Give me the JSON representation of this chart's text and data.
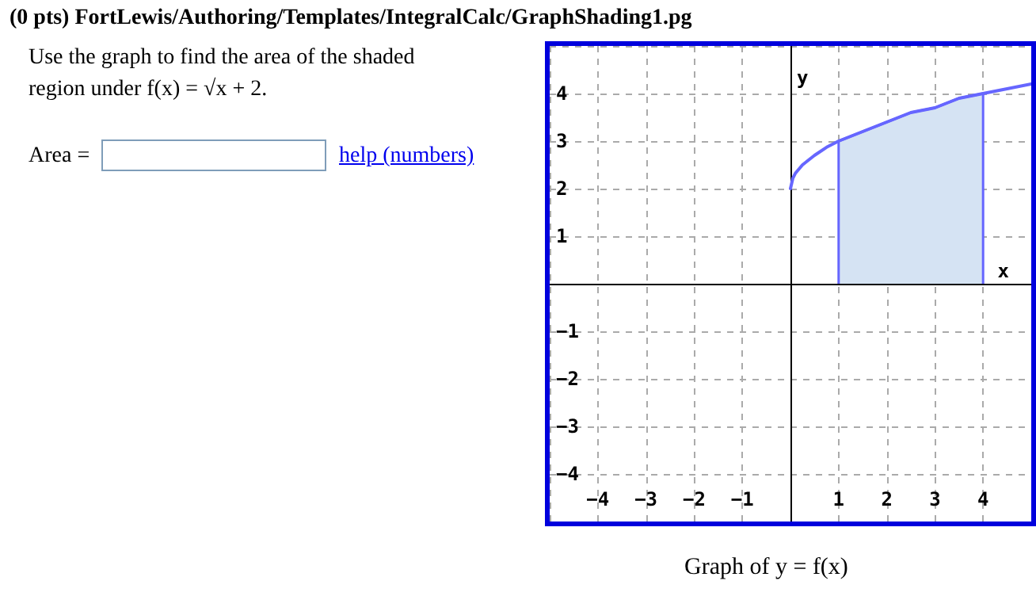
{
  "chart_data": {
    "type": "line",
    "title": "(0 pts) FortLewis/Authoring/Templates/IntegralCalc/GraphShading1.pg",
    "xlabel": "x",
    "ylabel": "y",
    "annotations": [
      "Use the graph to find the area of the shaded region under f(x) = √x + 2.",
      "Area =",
      "help (numbers)",
      "Graph of y = f(x)"
    ],
    "series": [
      {
        "type": "line",
        "color": "#6666ff",
        "x": [
          0,
          0.05,
          0.1,
          0.25,
          0.5,
          0.75,
          1,
          1.5,
          2,
          2.5,
          3,
          3.5,
          4,
          4.5,
          5
        ],
        "values": [
          2,
          2.22,
          2.32,
          2.5,
          2.7,
          2.87,
          3,
          3.2,
          3.4,
          3.6,
          3.7,
          3.9,
          4,
          4.1,
          4.2
        ]
      },
      {
        "type": "area",
        "color": "#d5e3f3",
        "x": [
          1,
          1,
          1.5,
          2,
          2.5,
          3,
          3.5,
          4,
          4
        ],
        "values": [
          0,
          3,
          3.2,
          3.4,
          3.6,
          3.7,
          3.9,
          4,
          0
        ]
      }
    ],
    "xlim": [
      -5,
      5
    ],
    "ylim": [
      -5,
      5
    ],
    "xticks": [
      -4,
      -3,
      -2,
      -1,
      1,
      2,
      3,
      4
    ],
    "yticks": [
      -4,
      -3,
      -2,
      -1,
      1,
      2,
      3,
      4
    ],
    "grid": true,
    "marker": "none",
    "line_style": "solid"
  }
}
